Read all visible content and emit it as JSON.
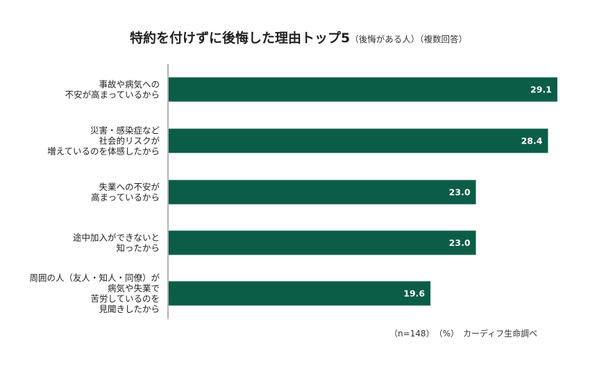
{
  "title": {
    "main": "特約を付けずに後悔した理由トップ5",
    "sub": "（後悔がある人）（複数回答）"
  },
  "footer": {
    "note": "（n=148）　（%）　カーディフ生命調べ"
  },
  "colors": {
    "bar": "#0b5d47",
    "axis": "#666666"
  },
  "chart_data": {
    "type": "bar",
    "orientation": "horizontal",
    "title": "特約を付けずに後悔した理由トップ5（後悔がある人）（複数回答）",
    "unit": "%",
    "xlim": [
      0,
      30
    ],
    "categories": [
      [
        "事故や病気への",
        "不安が高まっているから"
      ],
      [
        "災害・感染症など",
        "社会的リスクが",
        "増えているのを体感したから"
      ],
      [
        "失業への不安が",
        "高まっているから"
      ],
      [
        "途中加入ができないと",
        "知ったから"
      ],
      [
        "周囲の人（友人・知人・同僚）が",
        "病気や失業で",
        "苦労しているのを",
        "見聞きしたから"
      ]
    ],
    "values": [
      29.1,
      28.4,
      23.0,
      23.0,
      19.6
    ],
    "value_labels": [
      "29.1",
      "28.4",
      "23.0",
      "23.0",
      "19.6"
    ]
  }
}
